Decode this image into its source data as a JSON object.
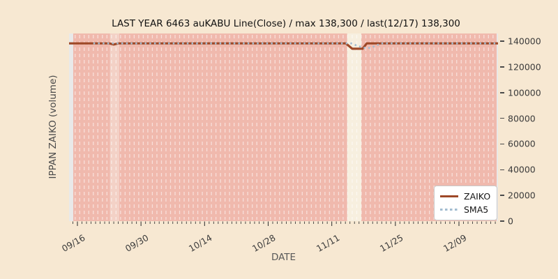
{
  "title": "LAST YEAR 6463 auKABU Line(Close) / max 138,300 / last(12/17) 138,300",
  "axes": {
    "x_label": "DATE",
    "y_label": "IPPAN ZAIKO (volume)",
    "x_tick_labels": [
      "09/16",
      "09/30",
      "10/14",
      "10/28",
      "11/11",
      "11/25",
      "12/09"
    ],
    "y_tick_labels": [
      "0",
      "20000",
      "40000",
      "60000",
      "80000",
      "100000",
      "120000",
      "140000"
    ]
  },
  "legend": {
    "entries": [
      {
        "label": "ZAIKO",
        "style": "solid"
      },
      {
        "label": "SMA5",
        "style": "dotted"
      }
    ]
  },
  "colors": {
    "page_bg": "#f7e8d2",
    "plot_bg": "#e9e9e9",
    "band_pink": "#f0b9ad",
    "band_light": "#f3d1c6",
    "band_gap": "#f7efdf",
    "grid_dash": "rgba(255,255,255,0.55)",
    "zaiko_line": "#9e4827",
    "sma5_line": "#a2bcd0",
    "tick": "#3a3a3a"
  },
  "chart_data": {
    "type": "line",
    "x_axis": "date, day offset from 09/16",
    "day0_date": "09/16",
    "xlim_days": [
      -1.84,
      92.6
    ],
    "ylim": [
      0,
      146000
    ],
    "y_ticks": [
      0,
      20000,
      40000,
      60000,
      80000,
      100000,
      120000,
      140000
    ],
    "x_tick_days": [
      0,
      14,
      28,
      42,
      56,
      70,
      84
    ],
    "grid": "vertical dashed per-day separators",
    "legend_position": "lower right",
    "stats": {
      "max": 138300,
      "last": 138300,
      "last_date": "12/17"
    },
    "series": [
      {
        "name": "ZAIKO",
        "style": "solid",
        "points": [
          [
            -2,
            138300
          ],
          [
            7,
            138300
          ],
          [
            8,
            137400
          ],
          [
            9,
            138300
          ],
          [
            59.1,
            138300
          ],
          [
            60.5,
            134100
          ],
          [
            62.8,
            134100
          ],
          [
            63.7,
            138300
          ],
          [
            92.6,
            138300
          ]
        ]
      },
      {
        "name": "SMA5",
        "style": "dotted",
        "points": [
          [
            3.5,
            138300
          ],
          [
            60.3,
            138300
          ],
          [
            61.8,
            136200
          ],
          [
            63.2,
            134800
          ],
          [
            64.4,
            134800
          ],
          [
            65.6,
            136300
          ],
          [
            66.8,
            138300
          ],
          [
            92.6,
            138300
          ]
        ]
      }
    ],
    "background_spans": [
      {
        "from": -0.92,
        "to": 7.2,
        "kind": "pink"
      },
      {
        "from": 7.2,
        "to": 9.2,
        "kind": "light"
      },
      {
        "from": 9.2,
        "to": 59.4,
        "kind": "pink"
      },
      {
        "from": 59.4,
        "to": 62.5,
        "kind": "gap"
      },
      {
        "from": 62.5,
        "to": 92.3,
        "kind": "pink"
      }
    ]
  }
}
